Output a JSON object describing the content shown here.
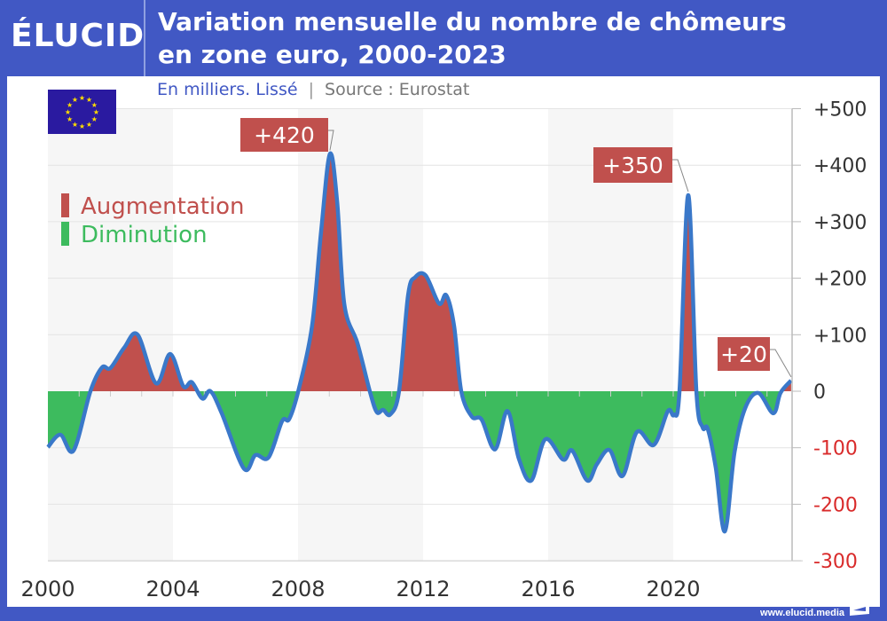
{
  "header": {
    "logo": "ÉLUCID",
    "title_line1": "Variation mensuelle du nombre de chômeurs",
    "title_line2": "en zone euro, 2000-2023",
    "subtitle_unit": "En milliers. Lissé",
    "subtitle_sep": "|",
    "subtitle_source": "Source : Eurostat"
  },
  "footer": {
    "url": "www.elucid.media"
  },
  "legend": {
    "up": "Augmentation",
    "down": "Diminution"
  },
  "colors": {
    "frame": "#4158c4",
    "up": "#c0504d",
    "down": "#3dbb5e",
    "line": "#3a78c9",
    "neg_tick": "#d92b2b"
  },
  "chart_data": {
    "type": "area",
    "title": "Variation mensuelle du nombre de chômeurs en zone euro, 2000-2023",
    "xlabel": "",
    "ylabel": "En milliers",
    "xlim": [
      2000,
      2023.85
    ],
    "ylim": [
      -300,
      500
    ],
    "x_ticks": [
      "2000",
      "2004",
      "2008",
      "2012",
      "2016",
      "2020"
    ],
    "y_ticks": [
      "+500",
      "+400",
      "+300",
      "+200",
      "+100",
      "0",
      "-100",
      "-200",
      "-300"
    ],
    "y_tick_values": [
      500,
      400,
      300,
      200,
      100,
      0,
      -100,
      -200,
      -300
    ],
    "grid": true,
    "shaded_periods": [
      [
        2000,
        2004
      ],
      [
        2008,
        2012
      ],
      [
        2016,
        2020
      ]
    ],
    "annotations": [
      {
        "text": "+420",
        "x": 2009.02,
        "y": 420
      },
      {
        "text": "+350",
        "x": 2020.48,
        "y": 347
      },
      {
        "text": "+20",
        "x": 2023.77,
        "y": 19
      }
    ],
    "series": [
      {
        "name": "Variation mensuelle",
        "x": [
          2000.0,
          2000.4,
          2000.82,
          2001.36,
          2001.73,
          2002.0,
          2002.44,
          2002.87,
          2003.46,
          2003.91,
          2004.33,
          2004.6,
          2004.94,
          2005.2,
          2005.56,
          2006.27,
          2006.64,
          2007.06,
          2007.49,
          2007.72,
          2008.03,
          2008.45,
          2008.74,
          2009.02,
          2009.25,
          2009.48,
          2009.9,
          2010.3,
          2010.52,
          2010.72,
          2010.95,
          2011.23,
          2011.52,
          2011.75,
          2012.08,
          2012.51,
          2012.74,
          2012.99,
          2013.22,
          2013.56,
          2013.87,
          2014.3,
          2014.7,
          2015.06,
          2015.46,
          2015.91,
          2016.48,
          2016.77,
          2017.25,
          2017.56,
          2017.96,
          2018.38,
          2018.84,
          2019.38,
          2019.83,
          2020.02,
          2020.2,
          2020.48,
          2020.74,
          2020.94,
          2021.1,
          2021.36,
          2021.65,
          2021.96,
          2022.3,
          2022.72,
          2023.2,
          2023.43,
          2023.77
        ],
        "y": [
          -99,
          -77,
          -105,
          0,
          42,
          41,
          77,
          100,
          14,
          66,
          9,
          16,
          -13,
          0,
          -39,
          -137,
          -113,
          -117,
          -53,
          -49,
          5,
          116,
          284,
          420,
          336,
          154,
          85,
          -1,
          -37,
          -33,
          -41,
          0,
          170,
          202,
          205,
          155,
          170,
          116,
          0,
          -45,
          -50,
          -103,
          -35,
          -119,
          -158,
          -85,
          -121,
          -105,
          -158,
          -129,
          -104,
          -150,
          -72,
          -95,
          -35,
          -42,
          0,
          347,
          0,
          -64,
          -66,
          -135,
          -248,
          -108,
          -30,
          -3,
          -39,
          -3,
          19
        ]
      }
    ]
  }
}
